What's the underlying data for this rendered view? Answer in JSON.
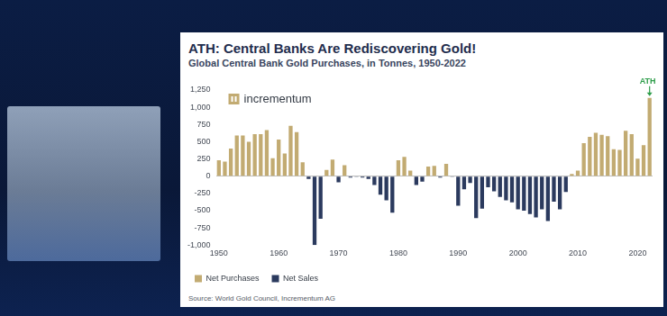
{
  "chart_data": {
    "type": "bar",
    "title": "ATH: Central Banks Are Rediscovering Gold!",
    "subtitle": "Global Central Bank Gold Purchases, in Tonnes, 1950-2022",
    "logo": "incrementum",
    "annotation": "ATH",
    "source": "Source: World Gold Council, Incrementum AG",
    "categories": [
      1950,
      null,
      null,
      null,
      null,
      null,
      null,
      null,
      null,
      null,
      1960,
      null,
      null,
      null,
      null,
      null,
      null,
      null,
      null,
      null,
      1970,
      null,
      null,
      null,
      null,
      null,
      null,
      null,
      null,
      null,
      1980,
      null,
      null,
      null,
      null,
      null,
      null,
      null,
      null,
      null,
      1990,
      null,
      null,
      null,
      null,
      null,
      null,
      null,
      null,
      null,
      2000,
      null,
      null,
      null,
      null,
      null,
      null,
      null,
      null,
      null,
      2010,
      null,
      null,
      null,
      null,
      null,
      null,
      null,
      null,
      null,
      2020,
      null,
      null
    ],
    "series": [
      {
        "name": "Net Purchases",
        "color": "#c2ab72",
        "values": [
          230,
          210,
          400,
          590,
          590,
          500,
          610,
          610,
          670,
          260,
          530,
          330,
          730,
          640,
          200,
          null,
          null,
          null,
          90,
          240,
          null,
          160,
          null,
          null,
          null,
          null,
          null,
          null,
          null,
          null,
          230,
          280,
          80,
          null,
          null,
          140,
          150,
          null,
          180,
          null,
          null,
          null,
          null,
          null,
          null,
          null,
          null,
          null,
          null,
          null,
          null,
          null,
          null,
          null,
          null,
          null,
          null,
          null,
          null,
          30,
          80,
          480,
          570,
          630,
          600,
          580,
          390,
          380,
          660,
          610,
          255,
          450,
          1135
        ]
      },
      {
        "name": "Net Sales",
        "color": "#2b3a5e",
        "values": [
          null,
          null,
          null,
          null,
          null,
          null,
          null,
          null,
          null,
          null,
          null,
          null,
          null,
          null,
          null,
          -40,
          -1000,
          -620,
          null,
          null,
          -90,
          null,
          -20,
          -10,
          -20,
          -40,
          -130,
          -270,
          -350,
          -530,
          null,
          null,
          null,
          -130,
          -80,
          null,
          null,
          -20,
          null,
          -10,
          -430,
          -190,
          -100,
          -610,
          -470,
          -160,
          -220,
          -300,
          -350,
          -380,
          -480,
          -500,
          -550,
          -600,
          -480,
          -650,
          -370,
          -480,
          -230,
          null,
          null,
          null,
          null,
          null,
          null,
          null,
          null,
          null,
          null,
          null,
          null,
          null,
          null
        ]
      }
    ],
    "ylim": [
      -1000,
      1250
    ],
    "yticks": [
      {
        "value": -1000,
        "label": "-1,000"
      },
      -750,
      -500,
      -250,
      0,
      250,
      500,
      750,
      {
        "value": 1000,
        "label": "1,000"
      },
      {
        "value": 1250,
        "label": "1,250"
      }
    ],
    "grid": false,
    "legend": "bottom"
  }
}
